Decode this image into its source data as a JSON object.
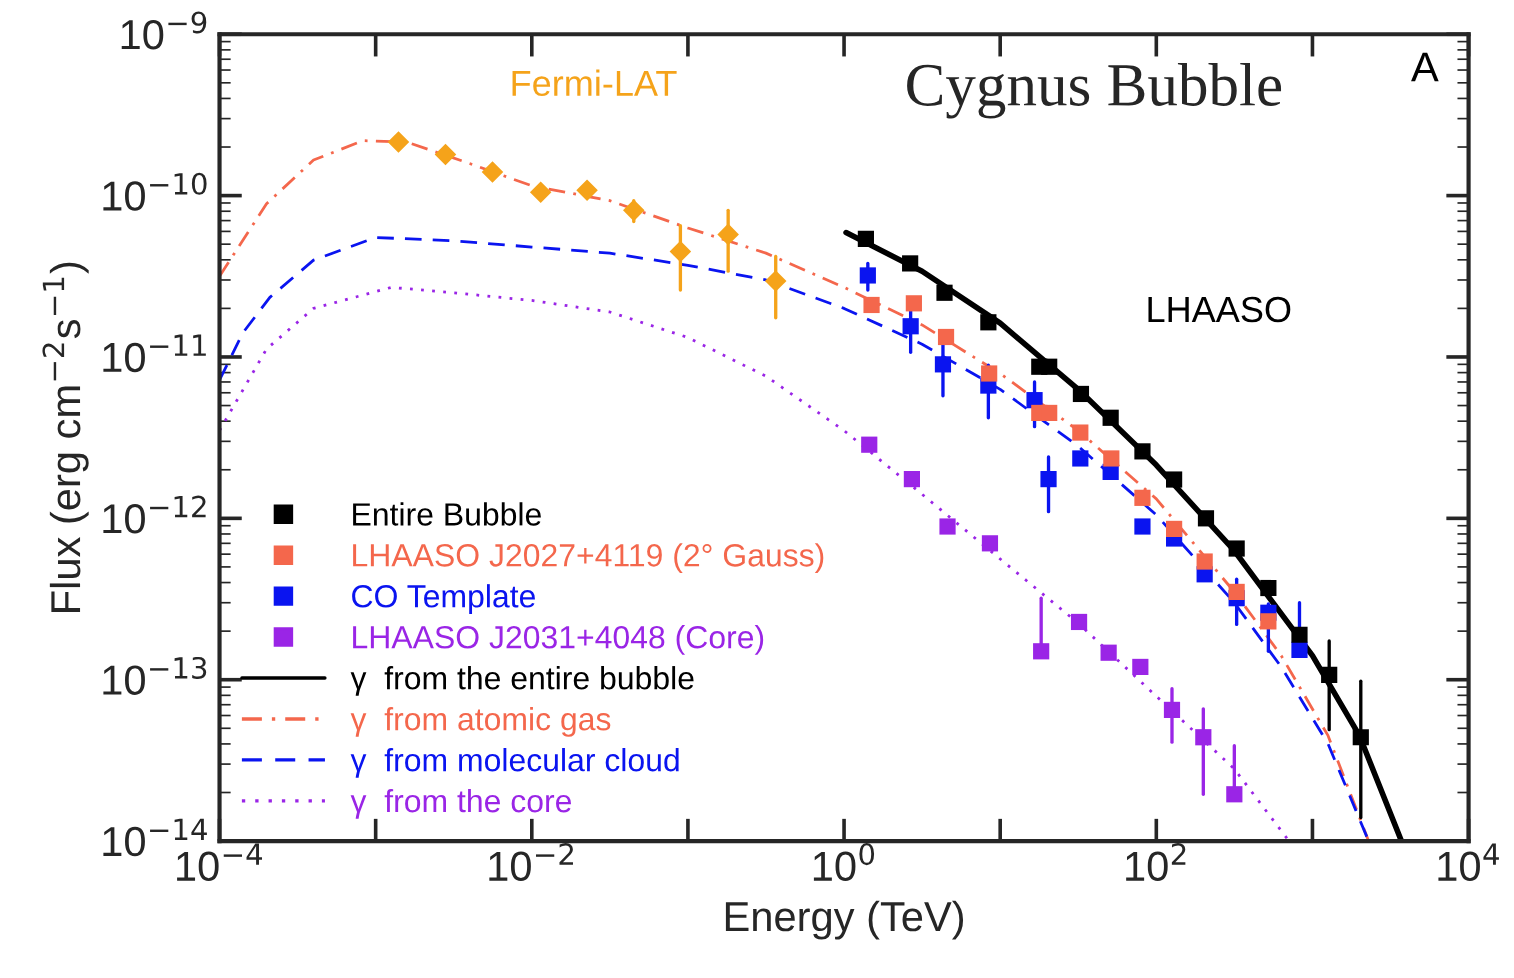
{
  "chart_data": {
    "type": "scatter",
    "title": "Cygnus Bubble",
    "xlabel": "Energy (TeV)",
    "ylabel": "Flux (erg cm$^{−2}$s$^{−1}$)",
    "log": "xy",
    "xlim": [
      0.0001,
      10000
    ],
    "ylim": [
      1e-14,
      1e-09
    ],
    "xticks": [
      {
        "value": 0.0001,
        "label": "10$^{−4}$"
      },
      {
        "value": 0.001,
        "label": null
      },
      {
        "value": 0.01,
        "label": "10$^{−2}$"
      },
      {
        "value": 0.1,
        "label": null
      },
      {
        "value": 1,
        "label": "10$^{0}$"
      },
      {
        "value": 10,
        "label": null
      },
      {
        "value": 100,
        "label": "10$^{2}$"
      },
      {
        "value": 1000,
        "label": null
      },
      {
        "value": 10000,
        "label": "10$^{4}$"
      }
    ],
    "yticks": [
      {
        "value": 1e-14,
        "label": "10$^{−14}$"
      },
      {
        "value": 1e-13,
        "label": "10$^{−13}$"
      },
      {
        "value": 1e-12,
        "label": "10$^{−12}$"
      },
      {
        "value": 1e-11,
        "label": "10$^{−11}$"
      },
      {
        "value": 1e-10,
        "label": "10$^{−10}$"
      },
      {
        "value": 1e-09,
        "label": "10$^{−9}$"
      }
    ],
    "grid": false,
    "legend": "bottom left",
    "annotations": [
      "A",
      "LHAASO"
    ],
    "series": [
      {
        "marker": "diamond",
        "name": "Fermi-LAT",
        "color": "#f5a31a",
        "x": [
          0.0014,
          0.0028,
          0.0056,
          0.0114,
          0.0226,
          0.045,
          0.0895,
          0.181,
          0.365
        ],
        "values": [
          2.15e-10,
          1.8e-10,
          1.4e-10,
          1.05e-10,
          1.08e-10,
          8.1e-11,
          4.5e-11,
          5.75e-11,
          2.96e-11
        ],
        "errors": [
          null,
          null,
          null,
          null,
          null,
          [
            6.9e-11,
            9.3e-11
          ],
          [
            2.6e-11,
            6.5e-11
          ],
          [
            3.4e-11,
            8.1e-11
          ],
          [
            1.75e-11,
            4.2e-11
          ]
        ]
      },
      {
        "marker": "square",
        "name": "Entire Bubble",
        "color": "#000000",
        "x": [
          1.38,
          2.65,
          4.4,
          8.4,
          17.8,
          20.6,
          32.9,
          51,
          81.5,
          130,
          208,
          327,
          522,
          826,
          1280,
          2040
        ],
        "values": [
          5.4e-11,
          3.8e-11,
          2.5e-11,
          1.64e-11,
          8.7e-12,
          8.7e-12,
          5.9e-12,
          4.2e-12,
          2.6e-12,
          1.74e-12,
          1e-12,
          6.5e-13,
          3.7e-13,
          1.9e-13,
          1.07e-13,
          4.4e-14
        ],
        "errors": [
          null,
          null,
          null,
          null,
          null,
          null,
          null,
          null,
          null,
          null,
          null,
          null,
          null,
          null,
          [
            4.9e-14,
            1.74e-13
          ],
          [
            1.4e-14,
            9.8e-14
          ]
        ]
      },
      {
        "marker": "square",
        "name": "LHAASO J2027+4119 (2° Gauss)",
        "color": "#f4674c",
        "x": [
          1.5,
          2.8,
          4.5,
          8.5,
          17.8,
          20.6,
          32.6,
          51.5,
          81.5,
          130,
          204,
          327,
          522
        ],
        "values": [
          2.1e-11,
          2.15e-11,
          1.33e-11,
          7.9e-12,
          4.5e-12,
          4.5e-12,
          3.4e-12,
          2.35e-12,
          1.34e-12,
          8.6e-13,
          5.4e-13,
          3.5e-13,
          2.3e-13
        ],
        "errors": [
          null,
          null,
          null,
          null,
          null,
          null,
          null,
          null,
          null,
          null,
          null,
          null,
          null
        ]
      },
      {
        "marker": "square",
        "name": "CO Template",
        "color": "#0a14f0",
        "x": [
          1.42,
          2.67,
          4.3,
          8.4,
          16.6,
          20.4,
          32.6,
          51,
          81.5,
          130,
          204,
          327,
          522,
          826
        ],
        "values": [
          3.2e-11,
          1.55e-11,
          9e-12,
          6.65e-12,
          5.4e-12,
          1.75e-12,
          2.35e-12,
          1.94e-12,
          8.9e-13,
          7.5e-13,
          4.5e-13,
          3.2e-13,
          2.6e-13,
          1.53e-13
        ],
        "errors": [
          [
            2.6e-11,
            3.8e-11
          ],
          [
            1.07e-11,
            2.04e-11
          ],
          [
            5.75e-12,
            1.2e-11
          ],
          [
            4.2e-12,
            8.9e-12
          ],
          [
            3.7e-12,
            7e-12
          ],
          [
            1.1e-12,
            2.4e-12
          ],
          null,
          null,
          null,
          null,
          null,
          [
            2.2e-13,
            4.2e-13
          ],
          [
            1.5e-13,
            2.95e-13
          ],
          [
            1.53e-13,
            3e-13
          ]
        ]
      },
      {
        "marker": "square",
        "name": "LHAASO J2031+4048 (Core)",
        "color": "#9a25e6",
        "x": [
          1.45,
          2.72,
          4.6,
          8.6,
          18.3,
          32,
          49.5,
          79,
          126,
          200,
          316
        ],
        "values": [
          2.86e-12,
          1.75e-12,
          8.9e-13,
          7e-13,
          1.5e-13,
          2.28e-13,
          1.47e-13,
          1.2e-13,
          6.5e-14,
          4.4e-14,
          1.95e-14
        ],
        "errors": [
          null,
          null,
          null,
          null,
          [
            1.5e-13,
            3.2e-13
          ],
          null,
          null,
          null,
          [
            4.1e-14,
            8.8e-14
          ],
          [
            1.95e-14,
            6.6e-14
          ],
          [
            1.95e-14,
            3.9e-14
          ]
        ]
      },
      {
        "type": "line",
        "line_style": "solid",
        "name": "γ  from the entire bubble",
        "color": "#000000",
        "x": [
          1.03,
          3.16,
          10,
          31.6,
          100,
          316,
          1000,
          2000,
          3715
        ],
        "values": [
          5.9e-11,
          3.4e-11,
          1.62e-11,
          6.3e-12,
          2.14e-12,
          6.3e-13,
          1.41e-13,
          4.5e-14,
          1e-14
        ]
      },
      {
        "type": "line",
        "line_style": "dashdot",
        "name": "γ  from atomic gas",
        "color": "#f4674c",
        "x": [
          0.0001,
          0.0002,
          0.0004,
          0.00083,
          0.0016,
          0.004,
          0.01,
          0.0316,
          0.1,
          0.316,
          1,
          3.16,
          10,
          31.6,
          100,
          316,
          631,
          1259,
          2290
        ],
        "values": [
          3.16e-11,
          8.9e-11,
          1.66e-10,
          2.19e-10,
          2.14e-10,
          1.58e-10,
          1.15e-10,
          9.3e-11,
          6.3e-11,
          4.4e-11,
          2.7e-11,
          1.58e-11,
          7.9e-12,
          3.5e-12,
          1.32e-12,
          3.5e-13,
          1.41e-13,
          4.5e-14,
          1e-14
        ]
      },
      {
        "type": "line",
        "line_style": "dashed",
        "name": "γ  from molecular cloud",
        "color": "#0a14f0",
        "x": [
          0.0001,
          0.000141,
          0.00021,
          0.0004,
          0.001,
          0.00316,
          0.01,
          0.0316,
          0.1,
          0.316,
          1,
          3.16,
          10,
          31.6,
          100,
          316,
          631,
          1259,
          2290
        ],
        "values": [
          7.2e-12,
          1.41e-11,
          2.34e-11,
          3.98e-11,
          5.5e-11,
          5.25e-11,
          4.8e-11,
          4.4e-11,
          3.7e-11,
          3e-11,
          2e-11,
          1.2e-11,
          6.3e-12,
          2.8e-12,
          1.05e-12,
          3e-13,
          1.2e-13,
          4e-14,
          1e-14
        ]
      },
      {
        "type": "line",
        "line_style": "dotted",
        "name": "γ  from the core",
        "color": "#9a25e6",
        "x": [
          0.0001,
          0.0002,
          0.0004,
          0.00126,
          0.00316,
          0.01,
          0.0316,
          0.1,
          0.316,
          1,
          3.16,
          10,
          31.6,
          100,
          316,
          708
        ],
        "values": [
          3.5e-12,
          1.12e-11,
          2e-11,
          2.7e-11,
          2.5e-11,
          2.24e-11,
          1.9e-11,
          1.32e-11,
          7.6e-12,
          3.5e-12,
          1.41e-12,
          5.6e-13,
          2.24e-13,
          7.9e-14,
          2.8e-14,
          1e-14
        ]
      }
    ]
  }
}
